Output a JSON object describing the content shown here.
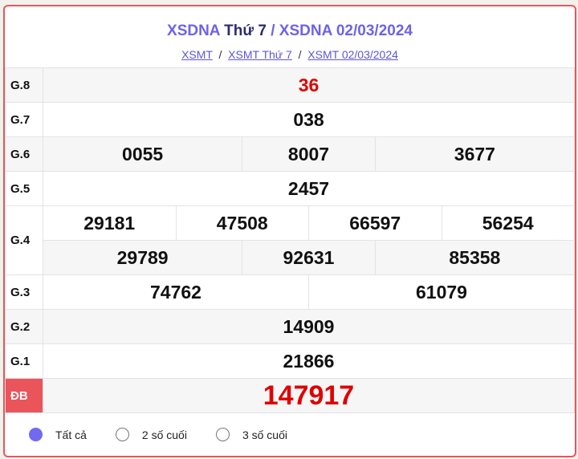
{
  "header": {
    "title_link1": "XSDNA",
    "title_mid": "Thứ 7",
    "title_sep": " / ",
    "title_link2": "XSDNA 02/03/2024",
    "breadcrumbs": [
      "XSMT",
      "XSMT Thứ 7",
      "XSMT 02/03/2024"
    ]
  },
  "prizes": [
    {
      "label": "G.8",
      "rows": [
        [
          "36"
        ]
      ]
    },
    {
      "label": "G.7",
      "rows": [
        [
          "038"
        ]
      ]
    },
    {
      "label": "G.6",
      "rows": [
        [
          "0055",
          "8007",
          "3677"
        ]
      ]
    },
    {
      "label": "G.5",
      "rows": [
        [
          "2457"
        ]
      ]
    },
    {
      "label": "G.4",
      "rows": [
        [
          "29181",
          "47508",
          "66597",
          "56254"
        ],
        [
          "29789",
          "92631",
          "85358"
        ]
      ]
    },
    {
      "label": "G.3",
      "rows": [
        [
          "74762",
          "61079"
        ]
      ]
    },
    {
      "label": "G.2",
      "rows": [
        [
          "14909"
        ]
      ]
    },
    {
      "label": "G.1",
      "rows": [
        [
          "21866"
        ]
      ]
    },
    {
      "label": "ĐB",
      "rows": [
        [
          "147917"
        ]
      ]
    }
  ],
  "filters": {
    "options": [
      "Tất cả",
      "2 số cuối",
      "3 số cuối"
    ],
    "selected": "Tất cả"
  },
  "colors": {
    "accent": "#6c63e8",
    "special": "#e9555b",
    "prize_red": "#e00000"
  }
}
